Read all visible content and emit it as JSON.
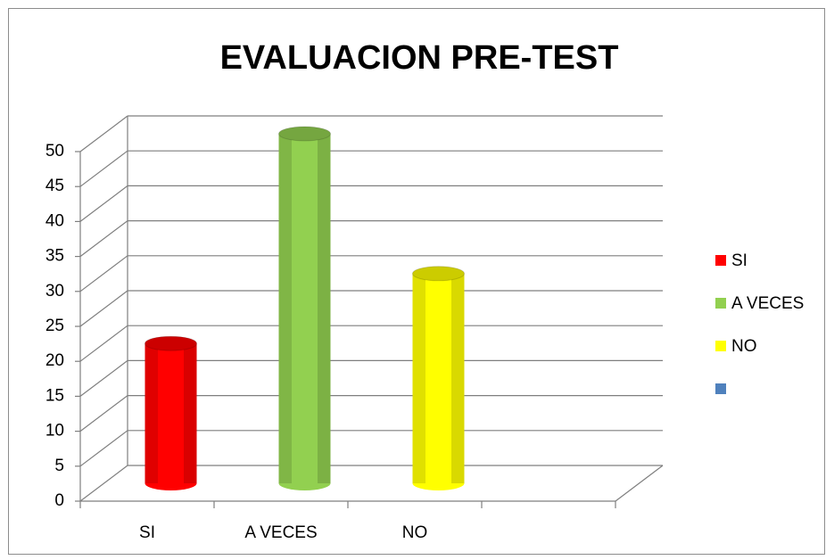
{
  "chart_data": {
    "type": "bar3d",
    "title": "EVALUACION PRE-TEST",
    "categories": [
      "SI",
      "A VECES",
      "NO",
      null
    ],
    "values": [
      20,
      50,
      30,
      null
    ],
    "colors": [
      "#ff0000",
      "#92d050",
      "#ffff00",
      "#4f81bd"
    ],
    "ylim": [
      0,
      50
    ],
    "yticks": [
      0,
      5,
      10,
      15,
      20,
      25,
      30,
      35,
      40,
      45,
      50
    ],
    "grid": true,
    "legend": "right"
  }
}
